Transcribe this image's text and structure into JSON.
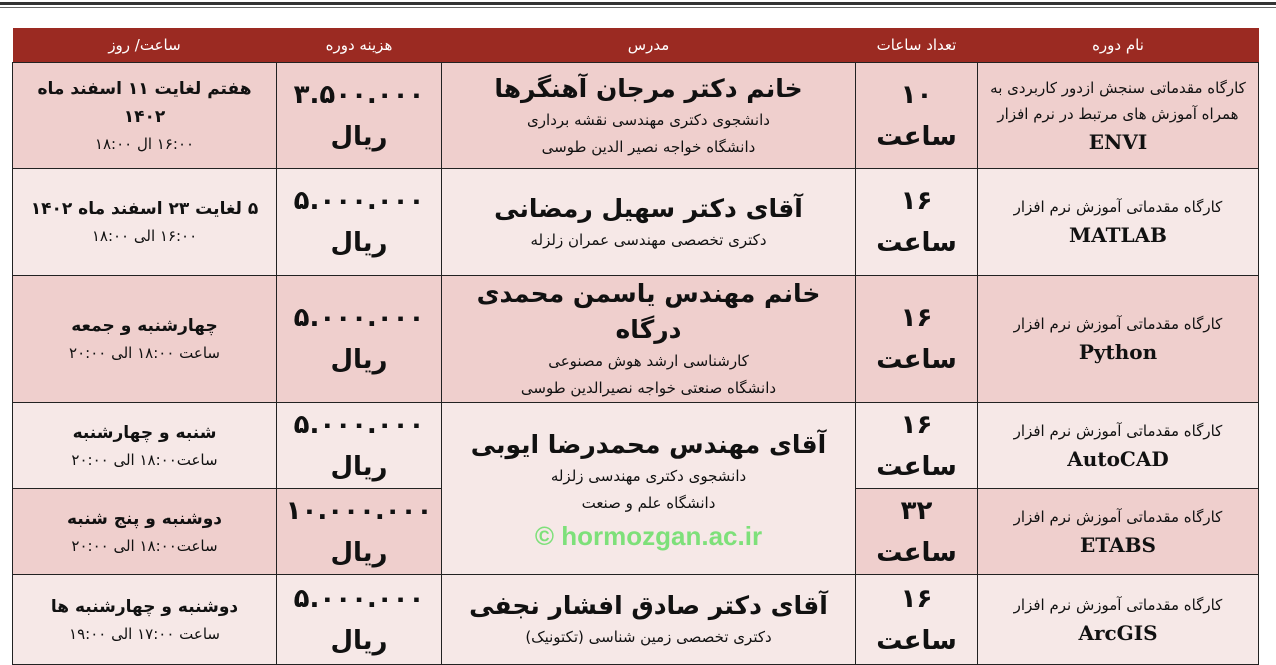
{
  "headers": [
    "نام دوره",
    "تعداد ساعات",
    "مدرس",
    "هزینه دوره",
    "ساعت/ روز"
  ],
  "colors": {
    "header_bg": "#9b2a22",
    "row_dark": "#efcfcd",
    "row_light": "#f6e8e7",
    "watermark": "#7ee07a"
  },
  "watermark": "© hormozgan.ac.ir",
  "rows": [
    {
      "course": "کارگاه مقدماتی سنجش ازدور کاربردی به همراه آموزش های مرتبط در نرم افزار",
      "software": "ENVI",
      "hours": "۱۰",
      "hours_unit": "ساعت",
      "instructor": {
        "name": "خانم دکتر مرجان آهنگرها",
        "lines": [
          "دانشجوی دکتری مهندسی نقشه برداری",
          "دانشگاه خواجه نصیر الدین طوسی"
        ]
      },
      "cost": "۳.۵۰۰.۰۰۰",
      "currency": "ریال",
      "schedule": "هفتم لغایت ۱۱ اسفند ماه ۱۴۰۲",
      "time": "۱۶:۰۰ ال ۱۸:۰۰"
    },
    {
      "course": "کارگاه مقدماتی آموزش نرم افزار",
      "software": "MATLAB",
      "hours": "۱۶",
      "hours_unit": "ساعت",
      "instructor": {
        "name": "آقای دکتر سهیل رمضانی",
        "lines": [
          "دکتری تخصصی مهندسی عمران زلزله"
        ]
      },
      "cost": "۵.۰۰۰.۰۰۰",
      "currency": "ریال",
      "schedule": "۵ لغایت ۲۳ اسفند ماه ۱۴۰۲",
      "time": "۱۶:۰۰ الی ۱۸:۰۰"
    },
    {
      "course": "کارگاه مقدماتی آموزش نرم افزار",
      "software": "Python",
      "hours": "۱۶",
      "hours_unit": "ساعت",
      "instructor": {
        "name": "خانم مهندس یاسمن محمدی درگاه",
        "lines": [
          "کارشناسی ارشد هوش مصنوعی",
          "دانشگاه صنعتی خواجه نصیرالدین طوسی"
        ]
      },
      "cost": "۵.۰۰۰.۰۰۰",
      "currency": "ریال",
      "schedule": "چهارشنبه و جمعه",
      "time": "ساعت ۱۸:۰۰ الی ۲۰:۰۰"
    },
    {
      "course": "کارگاه مقدماتی آموزش نرم افزار",
      "software": "AutoCAD",
      "hours": "۱۶",
      "hours_unit": "ساعت",
      "instructor": {
        "name": "آقای مهندس محمدرضا ایوبی",
        "lines": [
          "دانشجوی دکتری مهندسی زلزله",
          "دانشگاه علم و صنعت"
        ]
      },
      "cost": "۵.۰۰۰.۰۰۰",
      "currency": "ریال",
      "schedule": "شنبه و چهارشنبه",
      "time": "ساعت۱۸:۰۰ الی ۲۰:۰۰"
    },
    {
      "course": "کارگاه مقدماتی آموزش نرم افزار",
      "software": "ETABS",
      "hours": "۳۲",
      "hours_unit": "ساعت",
      "instructor": null,
      "cost": "۱۰.۰۰۰.۰۰۰",
      "currency": "ریال",
      "schedule": "دوشنبه و پنج شنبه",
      "time": "ساعت۱۸:۰۰ الی ۲۰:۰۰"
    },
    {
      "course": "کارگاه مقدماتی آموزش نرم افزار",
      "software": "ArcGIS",
      "hours": "۱۶",
      "hours_unit": "ساعت",
      "instructor": {
        "name": "آقای دکتر صادق افشار نجفی",
        "lines": [
          "دکتری تخصصی زمین شناسی (تکتونیک)"
        ]
      },
      "cost": "۵.۰۰۰.۰۰۰",
      "currency": "ریال",
      "schedule": "دوشنبه و چهارشنبه ها",
      "time": "ساعت ۱۷:۰۰ الی ۱۹:۰۰"
    }
  ]
}
